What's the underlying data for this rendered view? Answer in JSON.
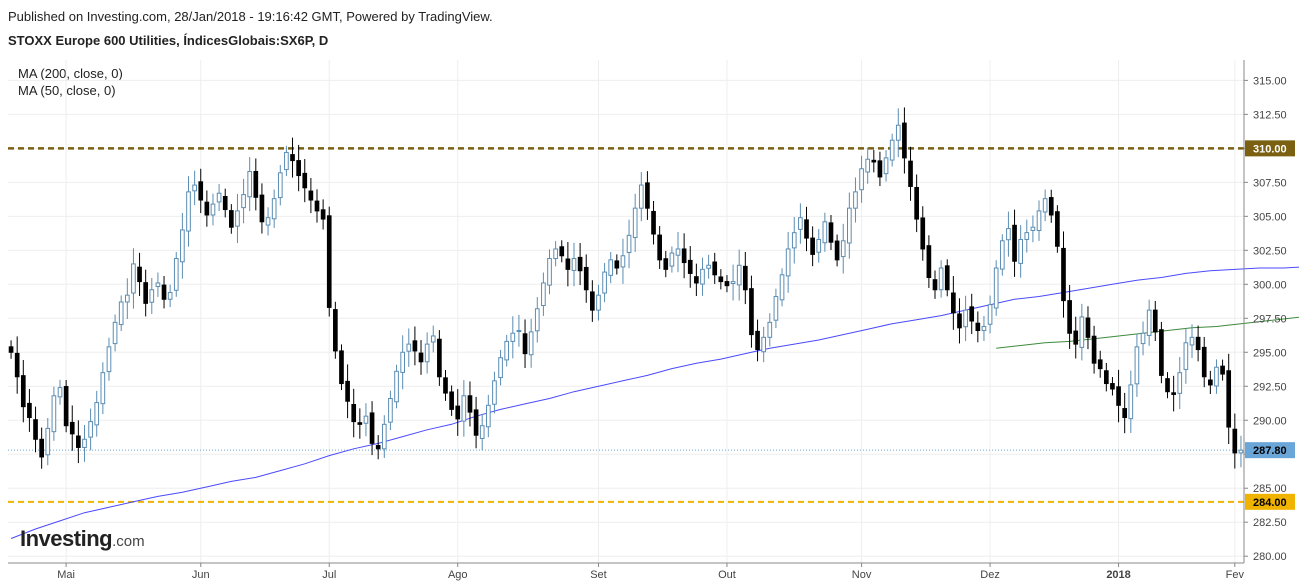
{
  "header": {
    "published": "Published on Investing.com, 28/Jan/2018 - 19:16:42 GMT, Powered by TradingView.",
    "symbol": "STOXX Europe 600 Utilities, ÍndicesGlobais:SX6P, D"
  },
  "legend": {
    "ma200": "MA (200, close, 0)",
    "ma50": "MA (50, close, 0)"
  },
  "logo": {
    "main": "Investing",
    "suffix": ".com"
  },
  "colors": {
    "up_fill": "#ffffff",
    "up_border": "#5b8db3",
    "down_fill": "#000000",
    "ma50": "#4a4aff",
    "ma200": "#3d8a3d",
    "resistance": "#7a6010",
    "support": "#f0b400",
    "last_price": "#6aa6d8",
    "grid": "#eeeeee"
  },
  "chart_data": {
    "type": "candlestick",
    "title": "STOXX Europe 600 Utilities, ÍndicesGlobais:SX6P, D",
    "ylim": [
      279.5,
      316.5
    ],
    "y_ticks": [
      "280.00",
      "282.50",
      "285.00",
      "287.50",
      "290.00",
      "292.50",
      "295.00",
      "297.50",
      "300.00",
      "302.50",
      "305.00",
      "307.50",
      "310.00",
      "312.50",
      "315.00"
    ],
    "x_ticks": [
      {
        "label": "Mai",
        "index": 9
      },
      {
        "label": "Jun",
        "index": 31
      },
      {
        "label": "Jul",
        "index": 52
      },
      {
        "label": "Ago",
        "index": 73
      },
      {
        "label": "Set",
        "index": 96
      },
      {
        "label": "Out",
        "index": 117
      },
      {
        "label": "Nov",
        "index": 139
      },
      {
        "label": "Dez",
        "index": 160
      },
      {
        "label": "2018",
        "index": 181,
        "bold": true
      },
      {
        "label": "Fev",
        "index": 200
      }
    ],
    "x_count": 202,
    "horizontal_lines": [
      {
        "label": "310.00",
        "value": 310.0,
        "style": "dashed",
        "role": "resistance"
      },
      {
        "label": "284.00",
        "value": 284.0,
        "style": "dashed",
        "role": "support"
      },
      {
        "label": "287.80",
        "value": 287.8,
        "style": "dotted",
        "role": "last_price"
      }
    ],
    "close": [
      295.0,
      293.2,
      291.0,
      290.2,
      288.6,
      287.3,
      289.4,
      291.8,
      292.4,
      289.6,
      289.0,
      288.0,
      288.6,
      289.9,
      291.3,
      293.5,
      295.4,
      297.2,
      298.7,
      299.2,
      301.5,
      300.2,
      298.6,
      299.6,
      300.1,
      298.9,
      299.4,
      301.9,
      304.0,
      306.8,
      307.3,
      306.2,
      305.1,
      305.9,
      306.7,
      305.5,
      304.2,
      305.4,
      306.6,
      308.3,
      306.4,
      304.6,
      304.9,
      306.3,
      308.2,
      309.7,
      309.1,
      308.0,
      307.1,
      306.2,
      305.4,
      304.8,
      298.3,
      295.1,
      292.7,
      291.4,
      289.9,
      289.7,
      290.3,
      288.3,
      287.9,
      289.7,
      291.6,
      293.6,
      295.0,
      295.6,
      295.1,
      294.3,
      295.6,
      296.2,
      293.2,
      292.0,
      290.8,
      290.1,
      291.8,
      290.6,
      288.9,
      289.6,
      291.1,
      292.9,
      294.6,
      295.8,
      296.4,
      296.6,
      294.9,
      296.5,
      298.2,
      300.1,
      301.9,
      302.6,
      302.1,
      301.1,
      301.9,
      301.0,
      299.6,
      298.1,
      299.2,
      300.9,
      301.8,
      301.2,
      302.1,
      303.6,
      305.6,
      307.3,
      305.6,
      303.7,
      301.8,
      301.1,
      302.3,
      302.6,
      301.6,
      300.8,
      300.1,
      301.1,
      301.4,
      300.7,
      300.2,
      299.9,
      300.2,
      301.4,
      299.6,
      296.3,
      295.2,
      296.1,
      297.2,
      299.1,
      300.7,
      302.6,
      303.8,
      304.9,
      303.4,
      302.2,
      303.3,
      304.6,
      303.1,
      301.8,
      303.2,
      305.6,
      306.8,
      308.5,
      309.2,
      309.0,
      307.9,
      309.3,
      310.6,
      311.7,
      309.3,
      307.2,
      304.8,
      302.6,
      300.5,
      299.6,
      301.2,
      299.6,
      297.9,
      296.8,
      298.1,
      297.3,
      296.6,
      296.9,
      298.5,
      301.2,
      303.2,
      304.1,
      301.7,
      303.3,
      303.8,
      304.2,
      305.4,
      306.3,
      305.1,
      302.8,
      298.8,
      296.4,
      295.6,
      297.6,
      296.1,
      294.2,
      293.8,
      292.7,
      292.3,
      291.1,
      290.2,
      292.6,
      295.4,
      296.4,
      298.1,
      296.5,
      293.3,
      292.1,
      291.9,
      293.5,
      295.7,
      296.1,
      295.2,
      293.2,
      292.6,
      293.9,
      293.4,
      289.5,
      287.6,
      287.8
    ],
    "ma50": [
      281.3,
      282.0,
      282.6,
      283.2,
      283.6,
      284.0,
      284.4,
      284.7,
      285.1,
      285.5,
      285.8,
      286.3,
      286.8,
      287.4,
      287.9,
      288.3,
      288.8,
      289.3,
      289.7,
      290.3,
      290.8,
      291.2,
      291.6,
      292.1,
      292.5,
      292.9,
      293.3,
      293.8,
      294.2,
      294.5,
      294.9,
      295.3,
      295.6,
      295.9,
      296.3,
      296.7,
      297.1,
      297.4,
      297.7,
      298.1,
      298.5,
      298.9,
      299.1,
      299.4,
      299.7,
      300.0,
      300.3,
      300.5,
      300.8,
      301.0,
      301.1,
      301.2,
      301.2,
      301.3,
      301.3,
      301.3,
      301.3,
      301.3,
      301.3,
      301.3,
      301.3,
      301.2,
      301.1,
      300.9,
      300.8,
      300.6,
      300.4,
      300.1,
      299.9,
      299.6,
      299.4,
      299.2,
      298.9,
      298.6,
      298.4,
      298.1,
      297.9,
      297.7,
      297.5,
      297.3,
      297.1,
      296.9,
      296.7,
      296.6,
      296.5,
      296.3,
      296.1,
      295.9,
      295.8,
      295.7,
      295.7,
      295.7,
      296.0,
      296.3,
      296.7,
      297.1,
      297.6,
      298.0,
      298.5,
      298.8,
      299.1,
      299.5,
      299.8,
      300.0,
      300.2,
      300.4,
      300.6,
      300.8,
      301.0,
      301.3,
      301.5,
      301.8,
      302.0,
      302.2,
      302.4,
      302.6,
      302.8,
      303.0,
      303.2,
      303.3,
      303.4,
      303.6,
      303.7,
      303.8,
      303.7,
      303.5,
      303.3,
      303.2,
      303.0,
      302.6,
      302.4,
      302.2,
      302.0,
      301.9,
      301.9,
      301.7,
      301.5,
      301.3,
      301.0,
      300.8,
      300.6,
      300.3,
      300.0,
      299.8,
      299.6,
      299.2,
      298.8,
      298.3,
      297.9,
      297.4,
      297.1
    ],
    "ma200": [
      295.3,
      295.5,
      295.7,
      295.8,
      296.0,
      296.2,
      296.4,
      296.6,
      296.8,
      296.9,
      297.1,
      297.3,
      297.5,
      297.7,
      297.8,
      298.0,
      298.2,
      298.4,
      298.5,
      298.6,
      298.7,
      298.8,
      298.9,
      298.9,
      299.0,
      299.0,
      299.0,
      299.1,
      299.1,
      299.1,
      299.2,
      299.2,
      299.2,
      299.2,
      299.2,
      299.2,
      299.2,
      299.2,
      299.1,
      299.1,
      299.0
    ],
    "ma200_start_index": 161,
    "ma50_start_index": 0
  }
}
